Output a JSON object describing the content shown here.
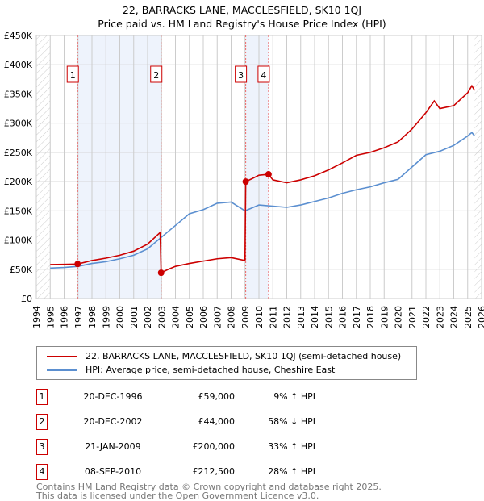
{
  "chart_data": {
    "type": "line",
    "title": "22, BARRACKS LANE, MACCLESFIELD, SK10 1QJ",
    "subtitle": "Price paid vs. HM Land Registry's House Price Index (HPI)",
    "xlim": [
      1994,
      2026
    ],
    "ylim": [
      0,
      450000
    ],
    "xticks": [
      "1994",
      "1995",
      "1996",
      "1997",
      "1998",
      "1999",
      "2000",
      "2001",
      "2002",
      "2003",
      "2004",
      "2005",
      "2006",
      "2007",
      "2008",
      "2009",
      "2010",
      "2011",
      "2012",
      "2013",
      "2014",
      "2015",
      "2016",
      "2017",
      "2018",
      "2019",
      "2020",
      "2021",
      "2022",
      "2023",
      "2024",
      "2025",
      "2026"
    ],
    "yticks": [
      {
        "v": 0,
        "label": "£0"
      },
      {
        "v": 50000,
        "label": "£50K"
      },
      {
        "v": 100000,
        "label": "£100K"
      },
      {
        "v": 150000,
        "label": "£150K"
      },
      {
        "v": 200000,
        "label": "£200K"
      },
      {
        "v": 250000,
        "label": "£250K"
      },
      {
        "v": 300000,
        "label": "£300K"
      },
      {
        "v": 350000,
        "label": "£350K"
      },
      {
        "v": 400000,
        "label": "£400K"
      },
      {
        "v": 450000,
        "label": "£450K"
      }
    ],
    "grid": true,
    "series": [
      {
        "name": "22, BARRACKS LANE, MACCLESFIELD, SK10 1QJ (semi-detached house)",
        "color": "#cc0000",
        "points": [
          [
            1995,
            58000
          ],
          [
            1996,
            58500
          ],
          [
            1996.97,
            59000
          ],
          [
            1997.5,
            62000
          ],
          [
            1998,
            65000
          ],
          [
            1999,
            69000
          ],
          [
            2000,
            74000
          ],
          [
            2001,
            81000
          ],
          [
            2002,
            93000
          ],
          [
            2002.9,
            113000
          ],
          [
            2002.97,
            44000
          ],
          [
            2003.5,
            50000
          ],
          [
            2004,
            55000
          ],
          [
            2005,
            60000
          ],
          [
            2006,
            64000
          ],
          [
            2007,
            68000
          ],
          [
            2008,
            70000
          ],
          [
            2009.0,
            65000
          ],
          [
            2009.05,
            200000
          ],
          [
            2009.5,
            205000
          ],
          [
            2010,
            211000
          ],
          [
            2010.69,
            212500
          ],
          [
            2011,
            203000
          ],
          [
            2012,
            198000
          ],
          [
            2013,
            203000
          ],
          [
            2014,
            210000
          ],
          [
            2015,
            220000
          ],
          [
            2016,
            232000
          ],
          [
            2017,
            245000
          ],
          [
            2018,
            250000
          ],
          [
            2019,
            258000
          ],
          [
            2020,
            268000
          ],
          [
            2021,
            290000
          ],
          [
            2022,
            318000
          ],
          [
            2022.6,
            338000
          ],
          [
            2023,
            325000
          ],
          [
            2024,
            330000
          ],
          [
            2025,
            352000
          ],
          [
            2025.3,
            364000
          ],
          [
            2025.5,
            356000
          ]
        ]
      },
      {
        "name": "HPI: Average price, semi-detached house, Cheshire East",
        "color": "#5b8fd0",
        "points": [
          [
            1995,
            52000
          ],
          [
            1996,
            53000
          ],
          [
            1997,
            55000
          ],
          [
            1998,
            60000
          ],
          [
            1999,
            63000
          ],
          [
            2000,
            68000
          ],
          [
            2001,
            74000
          ],
          [
            2002,
            85000
          ],
          [
            2003,
            105000
          ],
          [
            2004,
            125000
          ],
          [
            2005,
            145000
          ],
          [
            2006,
            152000
          ],
          [
            2007,
            163000
          ],
          [
            2008,
            165000
          ],
          [
            2009,
            150000
          ],
          [
            2010,
            160000
          ],
          [
            2011,
            158000
          ],
          [
            2012,
            156000
          ],
          [
            2013,
            160000
          ],
          [
            2014,
            166000
          ],
          [
            2015,
            172000
          ],
          [
            2016,
            180000
          ],
          [
            2017,
            186000
          ],
          [
            2018,
            191000
          ],
          [
            2019,
            198000
          ],
          [
            2020,
            204000
          ],
          [
            2021,
            225000
          ],
          [
            2022,
            246000
          ],
          [
            2023,
            252000
          ],
          [
            2024,
            262000
          ],
          [
            2025,
            278000
          ],
          [
            2025.3,
            284000
          ],
          [
            2025.5,
            278000
          ]
        ]
      }
    ],
    "sales": [
      {
        "id": "1",
        "x": 1996.97,
        "y": 59000
      },
      {
        "id": "2",
        "x": 2002.97,
        "y": 44000
      },
      {
        "id": "3",
        "x": 2009.05,
        "y": 200000
      },
      {
        "id": "4",
        "x": 2010.69,
        "y": 212500
      }
    ],
    "shaded": [
      [
        1996.97,
        2002.97
      ],
      [
        2009.05,
        2010.69
      ]
    ],
    "hatched": [
      [
        1994,
        1995
      ],
      [
        2025.5,
        2026
      ]
    ]
  },
  "legend": {
    "property": "22, BARRACKS LANE, MACCLESFIELD, SK10 1QJ (semi-detached house)",
    "hpi": "HPI: Average price, semi-detached house, Cheshire East"
  },
  "table": [
    {
      "num": "1",
      "date": "20-DEC-1996",
      "price": "£59,000",
      "hpi": "9% ↑ HPI"
    },
    {
      "num": "2",
      "date": "20-DEC-2002",
      "price": "£44,000",
      "hpi": "58% ↓ HPI"
    },
    {
      "num": "3",
      "date": "21-JAN-2009",
      "price": "£200,000",
      "hpi": "33% ↑ HPI"
    },
    {
      "num": "4",
      "date": "08-SEP-2010",
      "price": "£212,500",
      "hpi": "28% ↑ HPI"
    }
  ],
  "footer": {
    "line1": "Contains HM Land Registry data © Crown copyright and database right 2025.",
    "line2": "This data is licensed under the Open Government Licence v3.0."
  }
}
